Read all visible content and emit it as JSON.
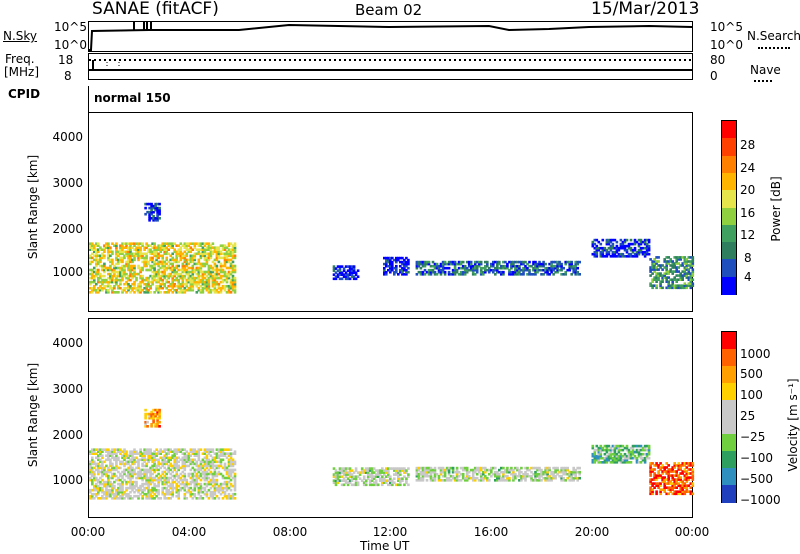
{
  "header": {
    "station": "SANAE (fitACF)",
    "beam": "Beam 02",
    "date": "15/Mar/2013"
  },
  "summary_panels": {
    "nsky_label": "N.Sky",
    "nsky_ticks": [
      "10^5",
      "10^0"
    ],
    "nsearch_label": "N.Search",
    "freq_label_1": "Freq.",
    "freq_label_2": "[MHz]",
    "freq_ticks": [
      "18",
      "8"
    ],
    "nave_ticks": [
      "80",
      "0"
    ],
    "nave_label": "Nave",
    "cpid_label": "CPID",
    "cpid_value": "normal 150"
  },
  "power_panel": {
    "ylabel": "Slant Range [km]",
    "yticks": [
      "4000",
      "3000",
      "2000",
      "1000"
    ],
    "colorbar_label": "Power [dB]",
    "colorbar_ticks": [
      "28",
      "24",
      "20",
      "16",
      "12",
      "8",
      "4"
    ],
    "colors": [
      "#0000ff",
      "#1f4fbf",
      "#2f7f5f",
      "#3fa060",
      "#8fd040",
      "#e6e64c",
      "#ffb400",
      "#ff8000",
      "#ff4000",
      "#ff0000"
    ]
  },
  "velocity_panel": {
    "ylabel": "Slant Range [km]",
    "yticks": [
      "4000",
      "3000",
      "2000",
      "1000"
    ],
    "colorbar_label": "Velocity [m s⁻¹]",
    "colorbar_ticks": [
      "1000",
      "500",
      "100",
      "25",
      "−25",
      "−100",
      "−500",
      "−1000"
    ],
    "colors": [
      "#1f3fbf",
      "#2f8fbf",
      "#2f9f5f",
      "#6fcf3f",
      "#c8c8c8",
      "#c8c8c8",
      "#ffd000",
      "#ffa000",
      "#ff6000",
      "#ff0000"
    ]
  },
  "x_axis": {
    "ticks": [
      "00:00",
      "04:00",
      "08:00",
      "12:00",
      "16:00",
      "20:00",
      "00:00"
    ],
    "label": "Time UT"
  },
  "chart_data": [
    {
      "type": "heatmap",
      "title": "Power",
      "xlabel": "Time UT",
      "ylabel": "Slant Range [km]",
      "xlim": [
        0,
        24
      ],
      "ylim": [
        200,
        4600
      ],
      "colorbar": {
        "label": "Power [dB]",
        "range": [
          0,
          30
        ],
        "ticks": [
          4,
          8,
          12,
          16,
          20,
          24,
          28
        ]
      },
      "regions": [
        {
          "x": [
            0.0,
            5.8
          ],
          "y": [
            600,
            1700
          ],
          "level": 0.55
        },
        {
          "x": [
            2.2,
            2.8
          ],
          "y": [
            2200,
            2600
          ],
          "level": 0.1
        },
        {
          "x": [
            9.7,
            10.7
          ],
          "y": [
            900,
            1200
          ],
          "level": 0.05
        },
        {
          "x": [
            11.7,
            12.7
          ],
          "y": [
            1000,
            1400
          ],
          "level": 0.05
        },
        {
          "x": [
            13.0,
            19.5
          ],
          "y": [
            1000,
            1300
          ],
          "level": 0.2
        },
        {
          "x": [
            20.0,
            22.3
          ],
          "y": [
            1400,
            1800
          ],
          "level": 0.1
        },
        {
          "x": [
            22.3,
            24.0
          ],
          "y": [
            700,
            1400
          ],
          "level": 0.3
        }
      ]
    },
    {
      "type": "heatmap",
      "title": "Velocity",
      "xlabel": "Time UT",
      "ylabel": "Slant Range [km]",
      "xlim": [
        0,
        24
      ],
      "ylim": [
        200,
        4600
      ],
      "colorbar": {
        "label": "Velocity [m s⁻¹]",
        "ticks": [
          1000,
          500,
          100,
          25,
          -25,
          -100,
          -500,
          -1000
        ]
      },
      "regions": [
        {
          "x": [
            0.0,
            5.8
          ],
          "y": [
            600,
            1700
          ],
          "level": 0.5
        },
        {
          "x": [
            2.2,
            2.8
          ],
          "y": [
            2200,
            2600
          ],
          "level": 0.75
        },
        {
          "x": [
            9.7,
            12.7
          ],
          "y": [
            900,
            1300
          ],
          "level": 0.45
        },
        {
          "x": [
            13.0,
            19.5
          ],
          "y": [
            1000,
            1300
          ],
          "level": 0.45
        },
        {
          "x": [
            20.0,
            22.3
          ],
          "y": [
            1400,
            1800
          ],
          "level": 0.3
        },
        {
          "x": [
            22.3,
            24.0
          ],
          "y": [
            700,
            1400
          ],
          "level": 0.85
        }
      ]
    }
  ]
}
